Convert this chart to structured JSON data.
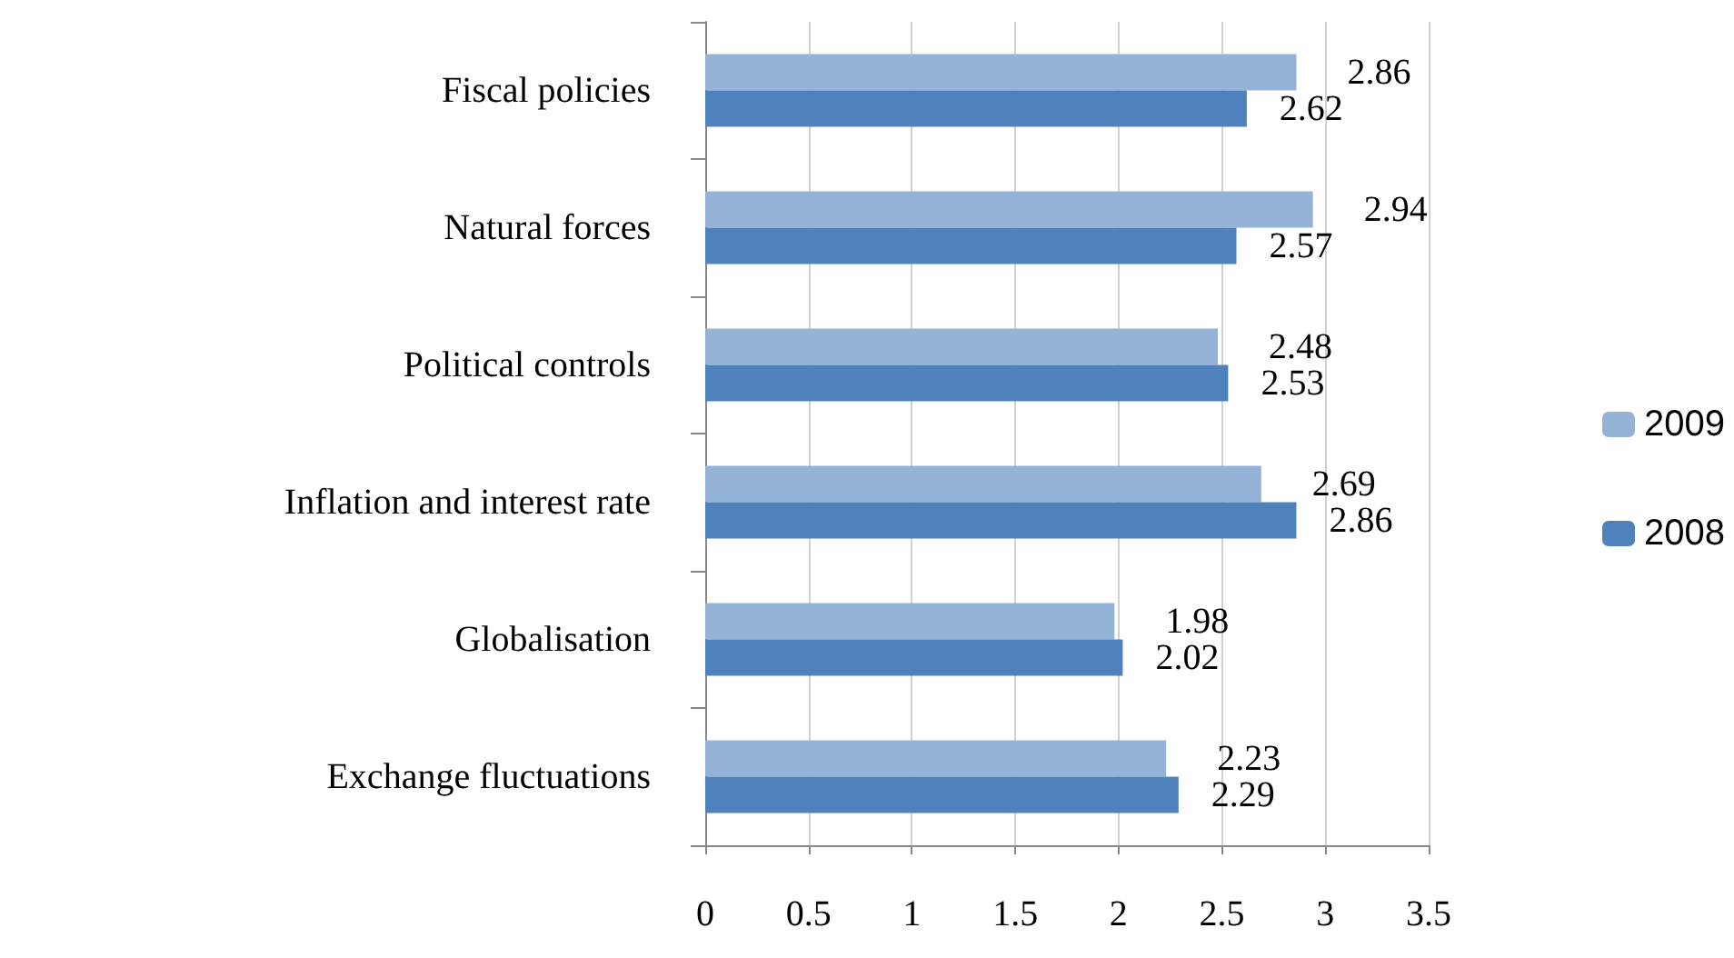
{
  "chart_data": {
    "type": "bar",
    "orientation": "horizontal",
    "categories": [
      "Fiscal policies",
      "Natural forces",
      "Political controls",
      "Inflation and interest rate",
      "Globalisation",
      "Exchange fluctuations"
    ],
    "series": [
      {
        "name": "2009",
        "color": "#95b3d7",
        "values": [
          2.86,
          2.94,
          2.48,
          2.69,
          1.98,
          2.23
        ]
      },
      {
        "name": "2008",
        "color": "#4f81bd",
        "values": [
          2.62,
          2.57,
          2.53,
          2.86,
          2.02,
          2.29
        ]
      }
    ],
    "xlim": [
      0,
      3.5
    ],
    "xticks": [
      0,
      0.5,
      1,
      1.5,
      2,
      2.5,
      3,
      3.5
    ],
    "data_labels": true,
    "grid": "x",
    "legend": "right"
  }
}
